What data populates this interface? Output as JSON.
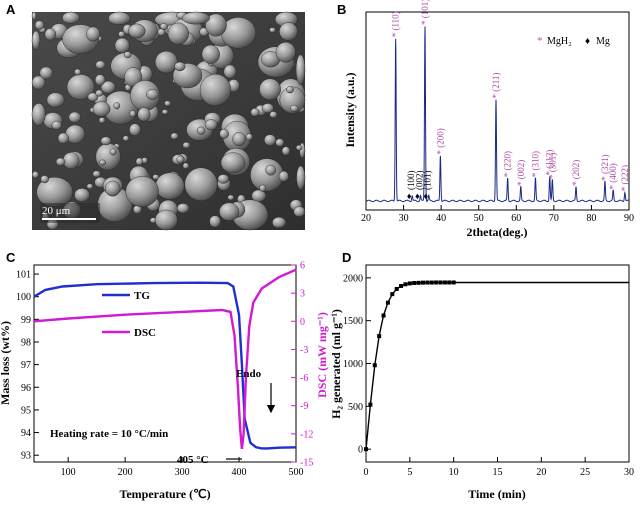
{
  "panels": {
    "a": {
      "letter": "A",
      "scale_bar": "20 μm"
    },
    "b": {
      "letter": "B"
    },
    "c": {
      "letter": "C"
    },
    "d": {
      "letter": "D"
    }
  },
  "chart_data": [
    {
      "type": "line",
      "id": "xrd",
      "xlabel": "2theta(deg.)",
      "ylabel": "Intensity (a.u.)",
      "xlim": [
        20,
        90
      ],
      "xticks": [
        20,
        30,
        40,
        50,
        60,
        70,
        80,
        90
      ],
      "legend": {
        "position": "top-right",
        "items": [
          {
            "symbol": "*",
            "label": "MgH₂",
            "color": "#c04aa8"
          },
          {
            "symbol": "♦",
            "label": "Mg",
            "color": "#000000"
          }
        ]
      },
      "peaks_mgh2": [
        {
          "x": 27.9,
          "h": 0.93,
          "label": "(110)"
        },
        {
          "x": 35.7,
          "h": 1.0,
          "label": "(101)"
        },
        {
          "x": 39.8,
          "h": 0.26,
          "label": "(200)"
        },
        {
          "x": 54.6,
          "h": 0.58,
          "label": "(211)"
        },
        {
          "x": 57.7,
          "h": 0.13,
          "label": "(220)"
        },
        {
          "x": 61.2,
          "h": 0.08,
          "label": "(002)"
        },
        {
          "x": 65.1,
          "h": 0.13,
          "label": "(310)"
        },
        {
          "x": 68.9,
          "h": 0.14,
          "label": "(112)"
        },
        {
          "x": 69.6,
          "h": 0.12,
          "label": "(301)"
        },
        {
          "x": 75.9,
          "h": 0.08,
          "label": "(202)"
        },
        {
          "x": 83.6,
          "h": 0.11,
          "label": "(321)"
        },
        {
          "x": 85.8,
          "h": 0.06,
          "label": "(400)"
        },
        {
          "x": 88.9,
          "h": 0.05,
          "label": "(222)"
        }
      ],
      "peaks_mg": [
        {
          "x": 32.3,
          "h": 0.03,
          "label": "(100)"
        },
        {
          "x": 34.5,
          "h": 0.03,
          "label": "(002)"
        },
        {
          "x": 36.7,
          "h": 0.03,
          "label": "(101)"
        }
      ]
    },
    {
      "type": "line",
      "id": "tg-dsc",
      "xlabel": "Temperature (℃)",
      "ylabel_left": "Mass loss (wt%)",
      "ylabel_right": "DSC (mW mg⁻¹)",
      "xlim": [
        40,
        500
      ],
      "xticks": [
        100,
        200,
        300,
        400,
        500
      ],
      "ylim_left": [
        92.7,
        101.4
      ],
      "yticks_left": [
        93,
        94,
        95,
        96,
        97,
        98,
        99,
        100,
        101
      ],
      "ylim_right": [
        -15,
        6
      ],
      "yticks_right": [
        6,
        3,
        0,
        -3,
        -6,
        -9,
        -12,
        -15
      ],
      "series": [
        {
          "name": "TG",
          "axis": "left",
          "color": "#1f2fd0",
          "x": [
            40,
            60,
            90,
            150,
            250,
            330,
            380,
            390,
            400,
            405,
            410,
            420,
            430,
            440,
            450,
            470,
            500
          ],
          "y": [
            100.0,
            100.3,
            100.45,
            100.55,
            100.6,
            100.62,
            100.6,
            100.45,
            99.2,
            97.0,
            94.6,
            93.55,
            93.35,
            93.3,
            93.3,
            93.33,
            93.35
          ]
        },
        {
          "name": "DSC",
          "axis": "right",
          "color": "#d21ad2",
          "x": [
            40,
            100,
            200,
            300,
            370,
            385,
            392,
            398,
            402,
            405,
            408,
            412,
            418,
            425,
            440,
            470,
            500
          ],
          "y": [
            0.0,
            0.3,
            0.7,
            1.0,
            1.2,
            1.0,
            -1.5,
            -7.0,
            -11.5,
            -13.6,
            -12.0,
            -6.0,
            -0.5,
            2.0,
            3.5,
            4.7,
            5.5
          ]
        }
      ],
      "annotations": {
        "heating_rate": "Heating rate = 10 °C/min",
        "peak_temp": "405 °C",
        "endo": "Endo"
      }
    },
    {
      "type": "line",
      "id": "h2",
      "xlabel": "Time (min)",
      "ylabel": "H₂ generated (ml g⁻¹)",
      "xlim": [
        0,
        30
      ],
      "xticks": [
        0,
        5,
        10,
        15,
        20,
        25,
        30
      ],
      "ylim": [
        -150,
        2150
      ],
      "yticks": [
        0,
        500,
        1000,
        1500,
        2000
      ],
      "series": [
        {
          "name": "",
          "color": "#000000",
          "x": [
            0,
            0.5,
            1,
            1.5,
            2,
            2.5,
            3,
            3.5,
            4,
            4.5,
            5,
            5.5,
            6,
            6.5,
            7,
            7.5,
            8,
            8.5,
            9,
            9.5,
            10,
            30
          ],
          "y": [
            0,
            520,
            980,
            1320,
            1560,
            1710,
            1810,
            1870,
            1905,
            1925,
            1935,
            1940,
            1942,
            1944,
            1945,
            1945,
            1946,
            1946,
            1946,
            1946,
            1946,
            1946
          ],
          "markers": 21
        }
      ]
    }
  ]
}
